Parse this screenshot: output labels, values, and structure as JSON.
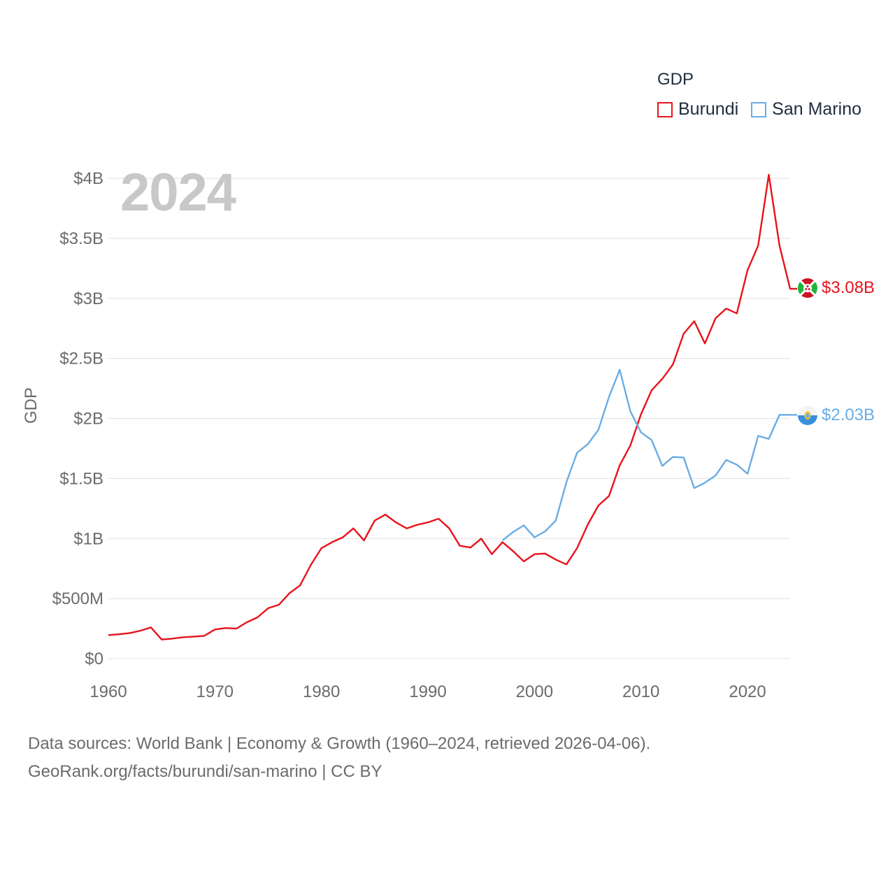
{
  "legend": {
    "title": "GDP",
    "items": [
      {
        "name": "Burundi",
        "color": "#e8131b"
      },
      {
        "name": "San Marino",
        "color": "#6aade4"
      }
    ]
  },
  "year_label": "2024",
  "source": {
    "line1": "Data sources: World Bank | Economy & Growth (1960–2024, retrieved 2026-04-06).",
    "line2": "GeoRank.org/facts/burundi/san-marino | CC BY"
  },
  "chart_data": {
    "type": "line",
    "title": "",
    "ylabel": "GDP",
    "xlabel": "",
    "xlim": [
      1960,
      2024
    ],
    "ylim": [
      0,
      4000000000
    ],
    "x_ticks": [
      1960,
      1970,
      1980,
      1990,
      2000,
      2010,
      2020
    ],
    "y_ticks": [
      {
        "value": 0,
        "label": "$0"
      },
      {
        "value": 500000000,
        "label": "$500M"
      },
      {
        "value": 1000000000,
        "label": "$1B"
      },
      {
        "value": 1500000000,
        "label": "$1.5B"
      },
      {
        "value": 2000000000,
        "label": "$2B"
      },
      {
        "value": 2500000000,
        "label": "$2.5B"
      },
      {
        "value": 3000000000,
        "label": "$3B"
      },
      {
        "value": 3500000000,
        "label": "$3.5B"
      },
      {
        "value": 4000000000,
        "label": "$4B"
      }
    ],
    "series": [
      {
        "name": "Burundi",
        "color": "#e8131b",
        "end_label": "$3.08B",
        "x": [
          1960,
          1961,
          1962,
          1963,
          1964,
          1965,
          1966,
          1967,
          1968,
          1969,
          1970,
          1971,
          1972,
          1973,
          1974,
          1975,
          1976,
          1977,
          1978,
          1979,
          1980,
          1981,
          1982,
          1983,
          1984,
          1985,
          1986,
          1987,
          1988,
          1989,
          1990,
          1991,
          1992,
          1993,
          1994,
          1995,
          1996,
          1997,
          1998,
          1999,
          2000,
          2001,
          2002,
          2003,
          2004,
          2005,
          2006,
          2007,
          2008,
          2009,
          2010,
          2011,
          2012,
          2013,
          2014,
          2015,
          2016,
          2017,
          2018,
          2019,
          2020,
          2021,
          2022,
          2023,
          2024
        ],
        "values": [
          196000000,
          203000000,
          213000000,
          233000000,
          260000000,
          159000000,
          167000000,
          178000000,
          184000000,
          190000000,
          243000000,
          255000000,
          250000000,
          303000000,
          344000000,
          420000000,
          449000000,
          545000000,
          610000000,
          780000000,
          920000000,
          970000000,
          1010000000,
          1085000000,
          985000000,
          1150000000,
          1200000000,
          1135000000,
          1085000000,
          1115000000,
          1135000000,
          1165000000,
          1085000000,
          940000000,
          925000000,
          1000000000,
          870000000,
          970000000,
          895000000,
          810000000,
          870000000,
          875000000,
          825000000,
          785000000,
          920000000,
          1115000000,
          1275000000,
          1355000000,
          1610000000,
          1775000000,
          2035000000,
          2235000000,
          2330000000,
          2450000000,
          2705000000,
          2810000000,
          2625000000,
          2835000000,
          2915000000,
          2875000000,
          3235000000,
          3440000000,
          4030000000,
          3440000000,
          3080000000
        ]
      },
      {
        "name": "San Marino",
        "color": "#6aade4",
        "end_label": "$2.03B",
        "x": [
          1997,
          1998,
          1999,
          2000,
          2001,
          2002,
          2003,
          2004,
          2005,
          2006,
          2007,
          2008,
          2009,
          2010,
          2011,
          2012,
          2013,
          2014,
          2015,
          2016,
          2017,
          2018,
          2019,
          2020,
          2021,
          2022,
          2023,
          2024
        ],
        "values": [
          985000000,
          1055000000,
          1110000000,
          1010000000,
          1060000000,
          1150000000,
          1470000000,
          1715000000,
          1785000000,
          1905000000,
          2180000000,
          2405000000,
          2060000000,
          1885000000,
          1820000000,
          1605000000,
          1680000000,
          1675000000,
          1420000000,
          1465000000,
          1525000000,
          1655000000,
          1615000000,
          1540000000,
          1855000000,
          1830000000,
          2030000000,
          2030000000
        ]
      }
    ]
  }
}
